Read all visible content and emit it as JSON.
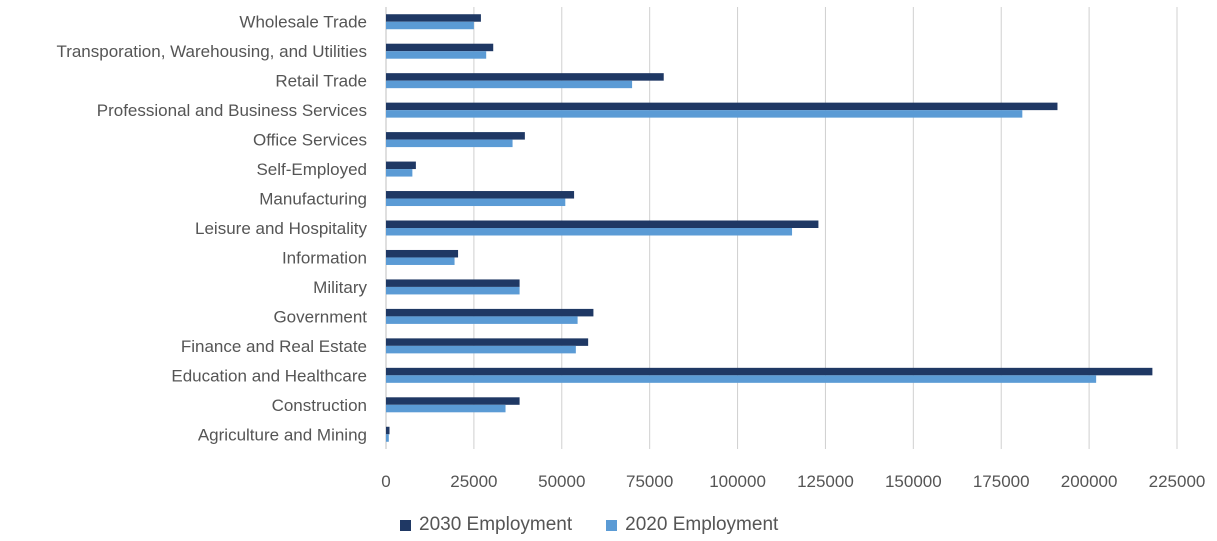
{
  "colors": {
    "series_2030": "#1f3864",
    "series_2020": "#5b9bd5",
    "grid": "#d0d0d0",
    "text": "#555555"
  },
  "chart_data": {
    "type": "bar",
    "orientation": "horizontal",
    "categories": [
      "Wholesale Trade",
      "Transporation, Warehousing, and Utilities",
      "Retail Trade",
      "Professional and Business Services",
      "Office Services",
      "Self-Employed",
      "Manufacturing",
      "Leisure and Hospitality",
      "Information",
      "Military",
      "Government",
      "Finance and Real Estate",
      "Education and Healthcare",
      "Construction",
      "Agriculture and Mining"
    ],
    "series": [
      {
        "name": "2030 Employment",
        "values": [
          27000,
          30500,
          79000,
          191000,
          39500,
          8500,
          53500,
          123000,
          20500,
          38000,
          59000,
          57500,
          218000,
          38000,
          1000
        ]
      },
      {
        "name": "2020 Employment",
        "values": [
          25000,
          28500,
          70000,
          181000,
          36000,
          7500,
          51000,
          115500,
          19500,
          38000,
          54500,
          54000,
          202000,
          34000,
          800
        ]
      }
    ],
    "xlim": [
      0,
      225000
    ],
    "xticks": [
      "0",
      "25000",
      "50000",
      "75000",
      "100000",
      "125000",
      "150000",
      "175000",
      "200000",
      "225000"
    ],
    "grid": true,
    "legend_position": "bottom"
  }
}
